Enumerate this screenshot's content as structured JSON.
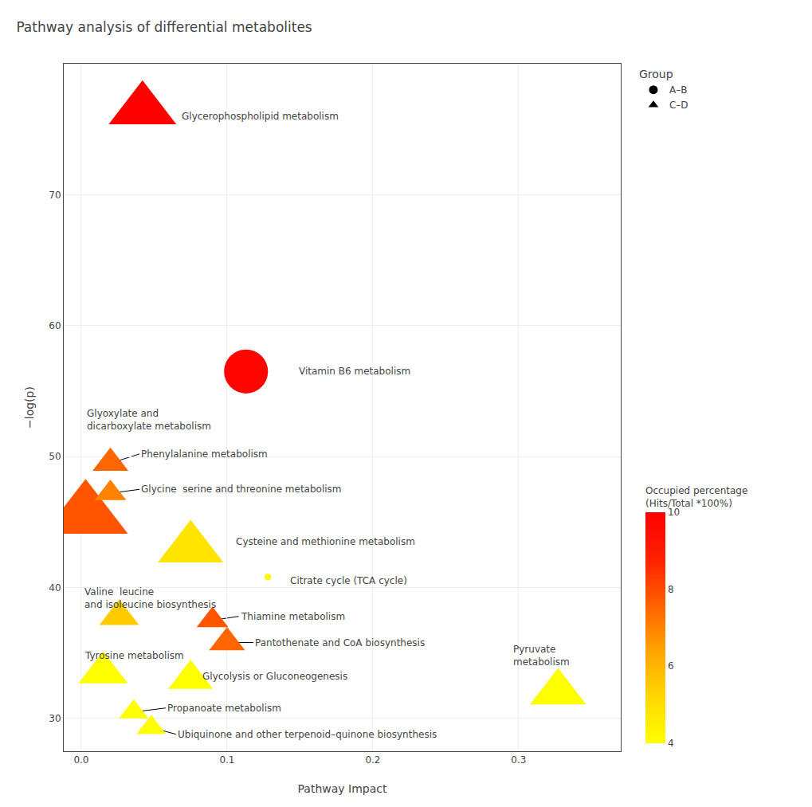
{
  "chart_data": {
    "type": "scatter",
    "title": "Pathway analysis of differential metabolites",
    "x_label": "Pathway Impact",
    "y_label": "−log(p)",
    "xlim": [
      -0.012,
      0.37
    ],
    "ylim": [
      27.5,
      80
    ],
    "xticks": [
      {
        "value": 0.0,
        "label": "0.0"
      },
      0.1,
      0.2,
      0.3
    ],
    "yticks": [
      30,
      40,
      50,
      60,
      70
    ],
    "grid": true,
    "colorbar": {
      "title": "Occupied percentage\n(Hits/Total *100%)",
      "range": [
        4,
        10
      ],
      "ticks": [
        4,
        6,
        8,
        10
      ],
      "colorscale": [
        "#FFFF00",
        "#FFD700",
        "#FFA500",
        "#FF6000",
        "#FF2000",
        "#FF0000"
      ]
    },
    "legend_title": "Group",
    "legend_entries": [
      {
        "name": "A–B",
        "marker": "circle"
      },
      {
        "name": "C–D",
        "marker": "triangle"
      }
    ],
    "points": [
      {
        "name": "Glycerophospholipid metabolism",
        "x": 0.042,
        "y": 76.5,
        "marker": "triangle",
        "color_value": 10.0,
        "size": 3200,
        "label_x": 0.068,
        "label_y": 76.0,
        "leader": false
      },
      {
        "name": "Vitamin B6 metabolism",
        "x": 0.113,
        "y": 56.5,
        "marker": "circle",
        "color_value": 9.8,
        "size": 1800,
        "label_x": 0.148,
        "label_y": 56.5,
        "leader": false
      },
      {
        "name": "Glyoxylate and\ndicarboxylate metabolism",
        "x": 0.003,
        "y": 45.5,
        "marker": "triangle",
        "color_value": 7.8,
        "size": 5000,
        "label_x": 0.003,
        "label_y": 52.8,
        "leader": false
      },
      {
        "name": "Phenylalanine metabolism",
        "x": 0.02,
        "y": 49.5,
        "marker": "triangle",
        "color_value": 7.5,
        "size": 900,
        "label_x": 0.04,
        "label_y": 50.2,
        "leader": true
      },
      {
        "name": "Glycine  serine and threonine metabolism",
        "x": 0.02,
        "y": 47.2,
        "marker": "triangle",
        "color_value": 7.0,
        "size": 700,
        "label_x": 0.04,
        "label_y": 47.5,
        "leader": true
      },
      {
        "name": "Cysteine and methionine metabolism",
        "x": 0.075,
        "y": 43.0,
        "marker": "triangle",
        "color_value": 4.8,
        "size": 3000,
        "label_x": 0.105,
        "label_y": 43.5,
        "leader": false
      },
      {
        "name": "Citrate cycle (TCA cycle)",
        "x": 0.128,
        "y": 40.8,
        "marker": "circle",
        "color_value": 4.2,
        "size": 40,
        "label_x": 0.142,
        "label_y": 40.5,
        "leader": false
      },
      {
        "name": "Valine  leucine\nand isoleucine biosynthesis",
        "x": 0.026,
        "y": 37.8,
        "marker": "triangle",
        "color_value": 5.5,
        "size": 1100,
        "label_x": 0.001,
        "label_y": 39.2,
        "leader": false
      },
      {
        "name": "Thiamine metabolism",
        "x": 0.09,
        "y": 37.5,
        "marker": "triangle",
        "color_value": 7.8,
        "size": 700,
        "label_x": 0.108,
        "label_y": 37.8,
        "leader": true
      },
      {
        "name": "Pantothenate and CoA biosynthesis",
        "x": 0.1,
        "y": 35.8,
        "marker": "triangle",
        "color_value": 7.5,
        "size": 900,
        "label_x": 0.118,
        "label_y": 35.8,
        "leader": true
      },
      {
        "name": "Tyrosine metabolism",
        "x": 0.015,
        "y": 33.5,
        "marker": "triangle",
        "color_value": 4.0,
        "size": 1700,
        "label_x": 0.001,
        "label_y": 34.8,
        "leader": false
      },
      {
        "name": "Glycolysis or Gluconeogenesis",
        "x": 0.075,
        "y": 33.0,
        "marker": "triangle",
        "color_value": 4.0,
        "size": 1400,
        "label_x": 0.082,
        "label_y": 33.2,
        "leader": false
      },
      {
        "name": "Pyruvate\nmetabolism",
        "x": 0.327,
        "y": 32.0,
        "marker": "triangle",
        "color_value": 4.0,
        "size": 2200,
        "label_x": 0.295,
        "label_y": 34.8,
        "leader": false
      },
      {
        "name": "Propanoate metabolism",
        "x": 0.036,
        "y": 30.5,
        "marker": "triangle",
        "color_value": 4.0,
        "size": 600,
        "label_x": 0.058,
        "label_y": 30.8,
        "leader": true
      },
      {
        "name": "Ubiquinone and other terpenoid–quinone biosynthesis",
        "x": 0.048,
        "y": 29.3,
        "marker": "triangle",
        "color_value": 4.0,
        "size": 600,
        "label_x": 0.065,
        "label_y": 28.8,
        "leader": true
      }
    ]
  }
}
